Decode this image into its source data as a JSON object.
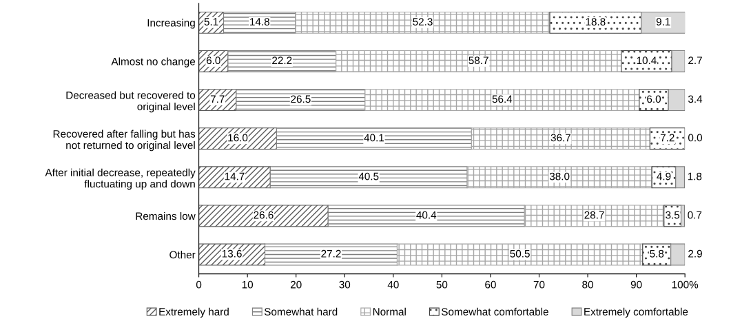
{
  "chart_data": {
    "type": "bar",
    "orientation": "horizontal",
    "stacked": true,
    "legend": "bottom",
    "grid": false,
    "categories": [
      "Increasing",
      "Almost no change",
      "Decreased but recovered to\noriginal level",
      "Recovered after falling but has\nnot returned to original level",
      "After initial decrease, repeatedly\nfluctuating up and down",
      "Remains low",
      "Other"
    ],
    "xlim": [
      0,
      100
    ],
    "xticks": [
      0,
      10,
      20,
      30,
      40,
      50,
      60,
      70,
      80,
      90,
      {
        "value": 100,
        "label": "100%"
      }
    ],
    "series": [
      {
        "name": "Extremely hard",
        "color": "#595959",
        "values": [
          5.1,
          6.0,
          7.7,
          16.0,
          14.7,
          26.6,
          13.6
        ],
        "value_labels": [
          "5.1",
          "6.0",
          "7.7",
          "16.0",
          "14.7",
          "26.6",
          "13.6"
        ]
      },
      {
        "name": "Somewhat hard",
        "color": "#7f7f7f",
        "values": [
          14.8,
          22.2,
          26.5,
          40.1,
          40.5,
          40.4,
          27.2
        ],
        "value_labels": [
          "14.8",
          "22.2",
          "26.5",
          "40.1",
          "40.5",
          "40.4",
          "27.2"
        ]
      },
      {
        "name": "Normal",
        "color": "#a6a6a6",
        "values": [
          52.3,
          58.7,
          56.4,
          36.7,
          38.0,
          28.7,
          50.5
        ],
        "value_labels": [
          "52.3",
          "58.7",
          "56.4",
          "36.7",
          "38.0",
          "28.7",
          "50.5"
        ]
      },
      {
        "name": "Somewhat comfortable",
        "color": "#404040",
        "values": [
          18.8,
          10.4,
          6.0,
          7.2,
          4.9,
          3.5,
          5.8
        ],
        "value_labels": [
          "18.8",
          "10.4",
          "6.0",
          "7.2",
          "4.9",
          "3.5",
          "5.8"
        ]
      },
      {
        "name": "Extremely comfortable",
        "color": "#d9d9d9",
        "values": [
          9.1,
          2.7,
          3.4,
          0.0,
          1.8,
          0.7,
          2.9
        ],
        "value_labels": [
          "9.1",
          "2.7",
          "3.4",
          "0.0",
          "1.8",
          "0.7",
          "2.9"
        ]
      }
    ]
  }
}
